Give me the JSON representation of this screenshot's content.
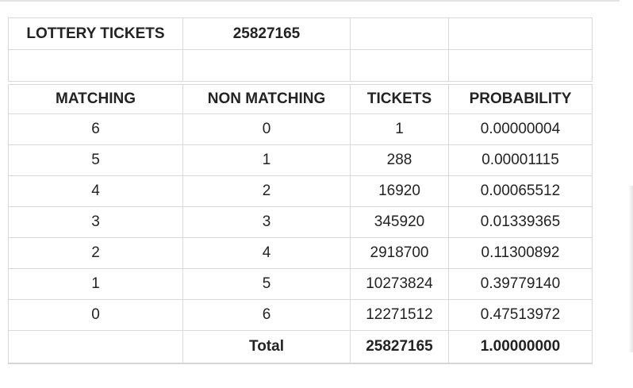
{
  "colors": {
    "background": "#ffffff",
    "border": "#d9d9d9",
    "text": "#232323",
    "top_rule": "#e3e3e3"
  },
  "summary_table": {
    "title": "LOTTERY TICKETS",
    "total_tickets": "25827165"
  },
  "results_table": {
    "headers": [
      "MATCHING",
      "NON MATCHING",
      "TICKETS",
      "PROBABILITY"
    ],
    "rows": [
      [
        "6",
        "0",
        "1",
        "0.00000004"
      ],
      [
        "5",
        "1",
        "288",
        "0.00001115"
      ],
      [
        "4",
        "2",
        "16920",
        "0.00065512"
      ],
      [
        "3",
        "3",
        "345920",
        "0.01339365"
      ],
      [
        "2",
        "4",
        "2918700",
        "0.11300892"
      ],
      [
        "1",
        "5",
        "10273824",
        "0.39779140"
      ],
      [
        "0",
        "6",
        "12271512",
        "0.47513972"
      ]
    ],
    "total_label": "Total",
    "total_tickets": "25827165",
    "total_probability": "1.00000000"
  },
  "chart_data": {
    "type": "table",
    "title": "LOTTERY TICKETS",
    "lottery_tickets_total": 25827165,
    "columns": [
      "MATCHING",
      "NON MATCHING",
      "TICKETS",
      "PROBABILITY"
    ],
    "rows": [
      [
        6,
        0,
        1,
        4e-08
      ],
      [
        5,
        1,
        288,
        1.115e-05
      ],
      [
        4,
        2,
        16920,
        0.00065512
      ],
      [
        3,
        3,
        345920,
        0.01339365
      ],
      [
        2,
        4,
        2918700,
        0.11300892
      ],
      [
        1,
        5,
        10273824,
        0.3977914
      ],
      [
        0,
        6,
        12271512,
        0.47513972
      ]
    ],
    "total_row": {
      "label": "Total",
      "tickets": 25827165,
      "probability": 1.0
    }
  }
}
